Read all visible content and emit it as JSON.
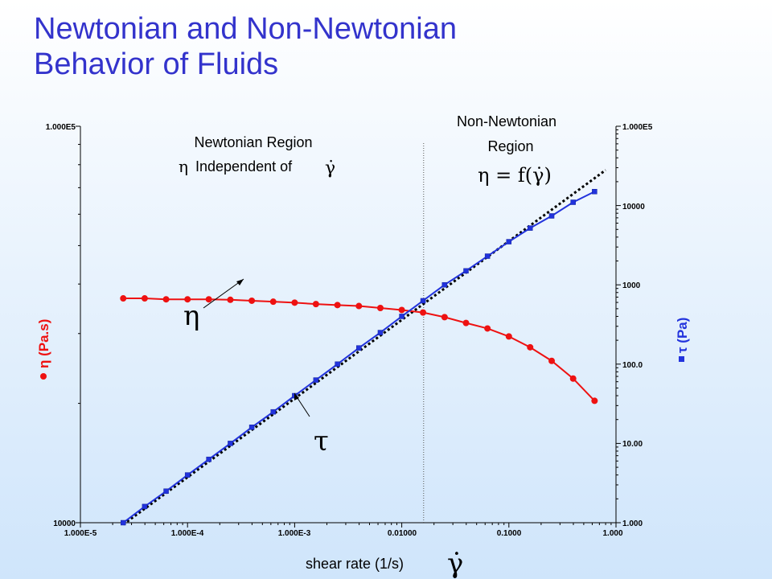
{
  "title_line1": "Newtonian and Non-Newtonian",
  "title_line2": "Behavior of Fluids",
  "chart_data": {
    "type": "line",
    "x_scale": "log",
    "xlim": [
      1e-05,
      1.0
    ],
    "x_ticks": [
      "1.000E-5",
      "1.000E-4",
      "1.000E-3",
      "0.01000",
      "0.1000",
      "1.000"
    ],
    "xlabel": "shear rate (1/s)",
    "xlabel_symbol": "γ̇",
    "left_axis": {
      "label": "η (Pa.s)",
      "scale": "log",
      "ylim": [
        10000,
        100000
      ],
      "tick_labels": [
        "1.000E5",
        "10000"
      ],
      "color": "#ee1111"
    },
    "right_axis": {
      "label": "τ (Pa)",
      "scale": "log",
      "ylim": [
        1.0,
        100000
      ],
      "tick_labels": [
        "1.000E5",
        "10000",
        "1000",
        "100.0",
        "10.00",
        "1.000"
      ],
      "color": "#2233dd"
    },
    "series": [
      {
        "name": "η",
        "axis": "left",
        "color": "#ee1111",
        "x": [
          2.51e-05,
          3.98e-05,
          6.31e-05,
          0.0001,
          0.000158,
          0.000251,
          0.000398,
          0.000631,
          0.001,
          0.00158,
          0.00251,
          0.00398,
          0.00631,
          0.01,
          0.0158,
          0.0251,
          0.0398,
          0.0631,
          0.1,
          0.158,
          0.251,
          0.398,
          0.631
        ],
        "y": [
          36800,
          36800,
          36600,
          36600,
          36600,
          36500,
          36300,
          36100,
          35900,
          35600,
          35400,
          35200,
          34800,
          34400,
          33900,
          33000,
          31900,
          30900,
          29500,
          27700,
          25600,
          23100,
          20300
        ]
      },
      {
        "name": "τ",
        "axis": "right",
        "color": "#2233dd",
        "x": [
          2.51e-05,
          3.98e-05,
          6.31e-05,
          0.0001,
          0.000158,
          0.000251,
          0.000398,
          0.000631,
          0.001,
          0.00158,
          0.00251,
          0.00398,
          0.00631,
          0.01,
          0.0158,
          0.0251,
          0.0398,
          0.0631,
          0.1,
          0.158,
          0.251,
          0.398,
          0.631
        ],
        "y": [
          1.0,
          1.6,
          2.5,
          4.0,
          6.3,
          10,
          16,
          25,
          40,
          63,
          100,
          160,
          250,
          400,
          630,
          1000,
          1500,
          2300,
          3500,
          5200,
          7400,
          11000,
          15000
        ]
      },
      {
        "name": "Newtonian",
        "axis": "right",
        "style": "dotted",
        "color": "#000000",
        "x": [
          2.51e-05,
          0.8
        ],
        "y": [
          0.95,
          28000
        ]
      }
    ],
    "divider_x": 0.016,
    "annotations": {
      "newtonian_line1": "Newtonian Region",
      "newtonian_line2": "Independent of",
      "nonnewtonian_line1": "Non-Newtonian",
      "nonnewtonian_line2": "Region",
      "nonnewtonian_eq": "η = f(γ̇)",
      "eta_symbol": "η",
      "tau_symbol": "τ"
    }
  }
}
